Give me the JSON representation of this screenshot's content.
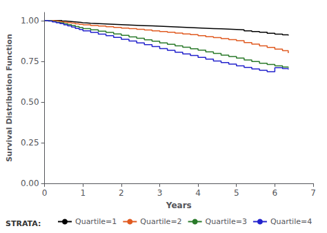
{
  "chart_data": {
    "type": "step",
    "xlabel": "Years",
    "ylabel": "Survival Distribution Function",
    "xlim": [
      0,
      7
    ],
    "ylim": [
      0.0,
      1.05
    ],
    "xticks": [
      0,
      1,
      2,
      3,
      4,
      5,
      6,
      7
    ],
    "yticks": [
      {
        "value": 0.0,
        "label": "0.00"
      },
      {
        "value": 0.25,
        "label": "0.25"
      },
      {
        "value": 0.5,
        "label": "0.50"
      },
      {
        "value": 0.75,
        "label": "0.75"
      },
      {
        "value": 1.0,
        "label": "1.00"
      }
    ],
    "grid": false,
    "legend": "bottom",
    "annotations": [
      "STRATA:"
    ],
    "series": [
      {
        "name": "Quartile=1",
        "color": "#000000",
        "x": [
          0,
          0.08,
          0.15,
          0.25,
          0.35,
          0.45,
          0.55,
          0.65,
          0.75,
          0.85,
          0.95,
          1.0,
          1.1,
          1.2,
          1.4,
          1.6,
          1.8,
          2.0,
          2.2,
          2.4,
          2.6,
          2.8,
          3.0,
          3.2,
          3.4,
          3.6,
          3.8,
          4.0,
          4.2,
          4.4,
          4.6,
          4.8,
          5.0,
          5.2,
          5.4,
          5.6,
          5.8,
          6.0,
          6.2,
          6.35
        ],
        "values": [
          1.0,
          1.0,
          1.0,
          1.0,
          1.0,
          0.997,
          0.995,
          0.993,
          0.991,
          0.989,
          0.987,
          0.985,
          0.983,
          0.981,
          0.979,
          0.977,
          0.975,
          0.973,
          0.971,
          0.969,
          0.967,
          0.965,
          0.963,
          0.961,
          0.959,
          0.957,
          0.955,
          0.953,
          0.951,
          0.949,
          0.947,
          0.945,
          0.943,
          0.937,
          0.933,
          0.928,
          0.922,
          0.917,
          0.912,
          0.908
        ]
      },
      {
        "name": "Quartile=2",
        "color": "#e05a20",
        "x": [
          0,
          0.05,
          0.1,
          0.2,
          0.3,
          0.4,
          0.5,
          0.6,
          0.7,
          0.8,
          0.9,
          1.0,
          1.2,
          1.4,
          1.6,
          1.8,
          2.0,
          2.2,
          2.4,
          2.6,
          2.8,
          3.0,
          3.2,
          3.4,
          3.6,
          3.8,
          4.0,
          4.2,
          4.4,
          4.6,
          4.8,
          5.0,
          5.2,
          5.4,
          5.6,
          5.8,
          6.0,
          6.2,
          6.35
        ],
        "values": [
          1.0,
          1.0,
          1.0,
          0.998,
          0.996,
          0.993,
          0.99,
          0.987,
          0.984,
          0.98,
          0.977,
          0.974,
          0.97,
          0.966,
          0.962,
          0.958,
          0.954,
          0.95,
          0.946,
          0.942,
          0.937,
          0.932,
          0.928,
          0.923,
          0.918,
          0.913,
          0.907,
          0.901,
          0.895,
          0.889,
          0.883,
          0.876,
          0.865,
          0.855,
          0.845,
          0.835,
          0.825,
          0.815,
          0.8
        ]
      },
      {
        "name": "Quartile=3",
        "color": "#2a7a2a",
        "x": [
          0,
          0.05,
          0.1,
          0.2,
          0.3,
          0.4,
          0.5,
          0.6,
          0.7,
          0.8,
          0.9,
          1.0,
          1.2,
          1.4,
          1.6,
          1.8,
          2.0,
          2.2,
          2.4,
          2.6,
          2.8,
          3.0,
          3.2,
          3.4,
          3.6,
          3.8,
          4.0,
          4.2,
          4.4,
          4.6,
          4.8,
          5.0,
          5.2,
          5.4,
          5.6,
          5.8,
          6.0,
          6.2,
          6.35
        ],
        "values": [
          1.0,
          1.0,
          0.998,
          0.994,
          0.99,
          0.986,
          0.98,
          0.975,
          0.97,
          0.963,
          0.957,
          0.951,
          0.943,
          0.935,
          0.927,
          0.918,
          0.909,
          0.9,
          0.891,
          0.882,
          0.873,
          0.863,
          0.854,
          0.845,
          0.836,
          0.827,
          0.818,
          0.808,
          0.798,
          0.788,
          0.779,
          0.769,
          0.758,
          0.748,
          0.738,
          0.73,
          0.722,
          0.714,
          0.71
        ]
      },
      {
        "name": "Quartile=4",
        "color": "#2222cc",
        "x": [
          0,
          0.05,
          0.1,
          0.2,
          0.3,
          0.4,
          0.5,
          0.6,
          0.7,
          0.8,
          0.9,
          1.0,
          1.2,
          1.4,
          1.6,
          1.8,
          2.0,
          2.2,
          2.4,
          2.6,
          2.8,
          3.0,
          3.2,
          3.4,
          3.6,
          3.8,
          4.0,
          4.2,
          4.4,
          4.6,
          4.8,
          5.0,
          5.2,
          5.4,
          5.6,
          5.8,
          6.0,
          6.2,
          6.35
        ],
        "values": [
          1.0,
          1.0,
          0.997,
          0.992,
          0.987,
          0.981,
          0.974,
          0.967,
          0.96,
          0.952,
          0.945,
          0.937,
          0.927,
          0.917,
          0.907,
          0.896,
          0.885,
          0.874,
          0.863,
          0.852,
          0.84,
          0.828,
          0.817,
          0.806,
          0.795,
          0.785,
          0.774,
          0.763,
          0.752,
          0.742,
          0.732,
          0.722,
          0.712,
          0.703,
          0.694,
          0.686,
          0.71,
          0.705,
          0.7
        ]
      }
    ]
  }
}
